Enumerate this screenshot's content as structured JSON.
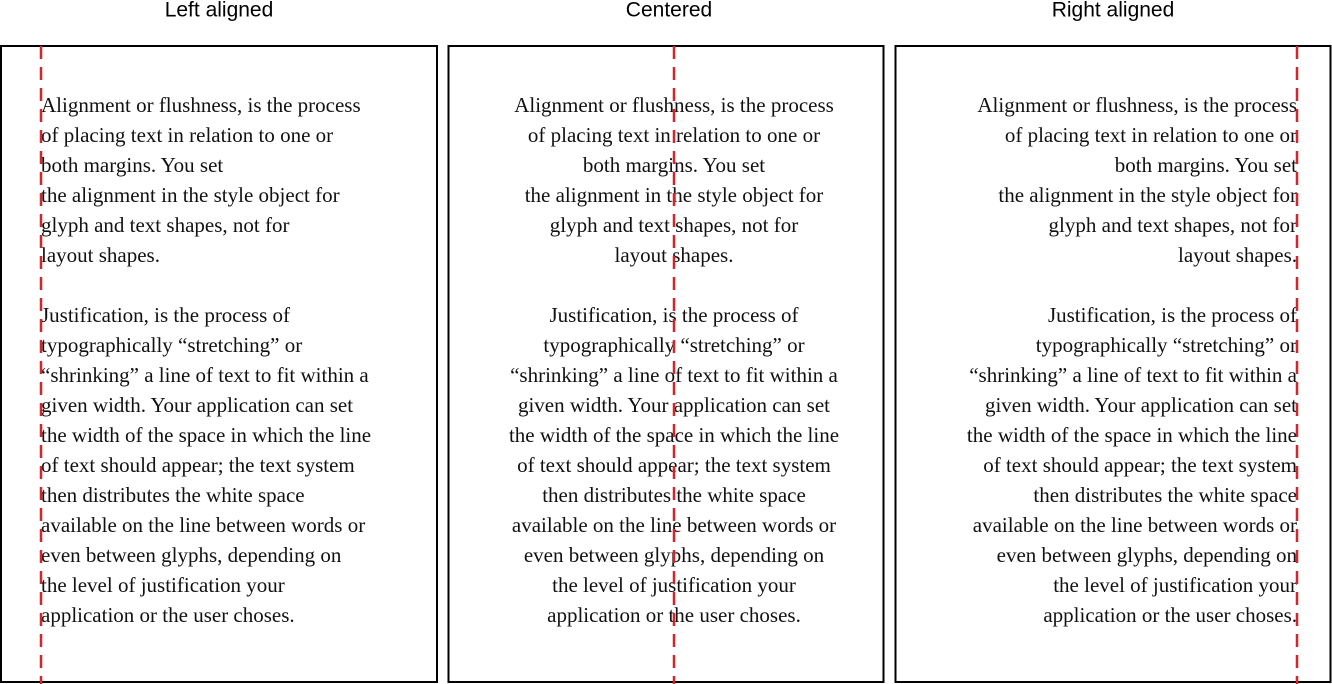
{
  "panels": [
    {
      "title": "Left aligned"
    },
    {
      "title": "Centered"
    },
    {
      "title": "Right aligned"
    }
  ],
  "paragraphs": [
    [
      "Alignment or flushness, is the process",
      "of placing text in relation to one or",
      "both margins. You set",
      "the alignment in the style object for",
      "glyph and text shapes, not for",
      "layout shapes."
    ],
    [
      "Justification, is the process of",
      "typographically “stretching” or",
      "“shrinking” a line of text to fit within a",
      "given width. Your application can set",
      "the width of the space in which the line",
      "of text should appear; the text system",
      "then distributes the white space",
      "available on the line between words or",
      "even between glyphs, depending on",
      "the level of justification your",
      "application or the user choses."
    ]
  ]
}
